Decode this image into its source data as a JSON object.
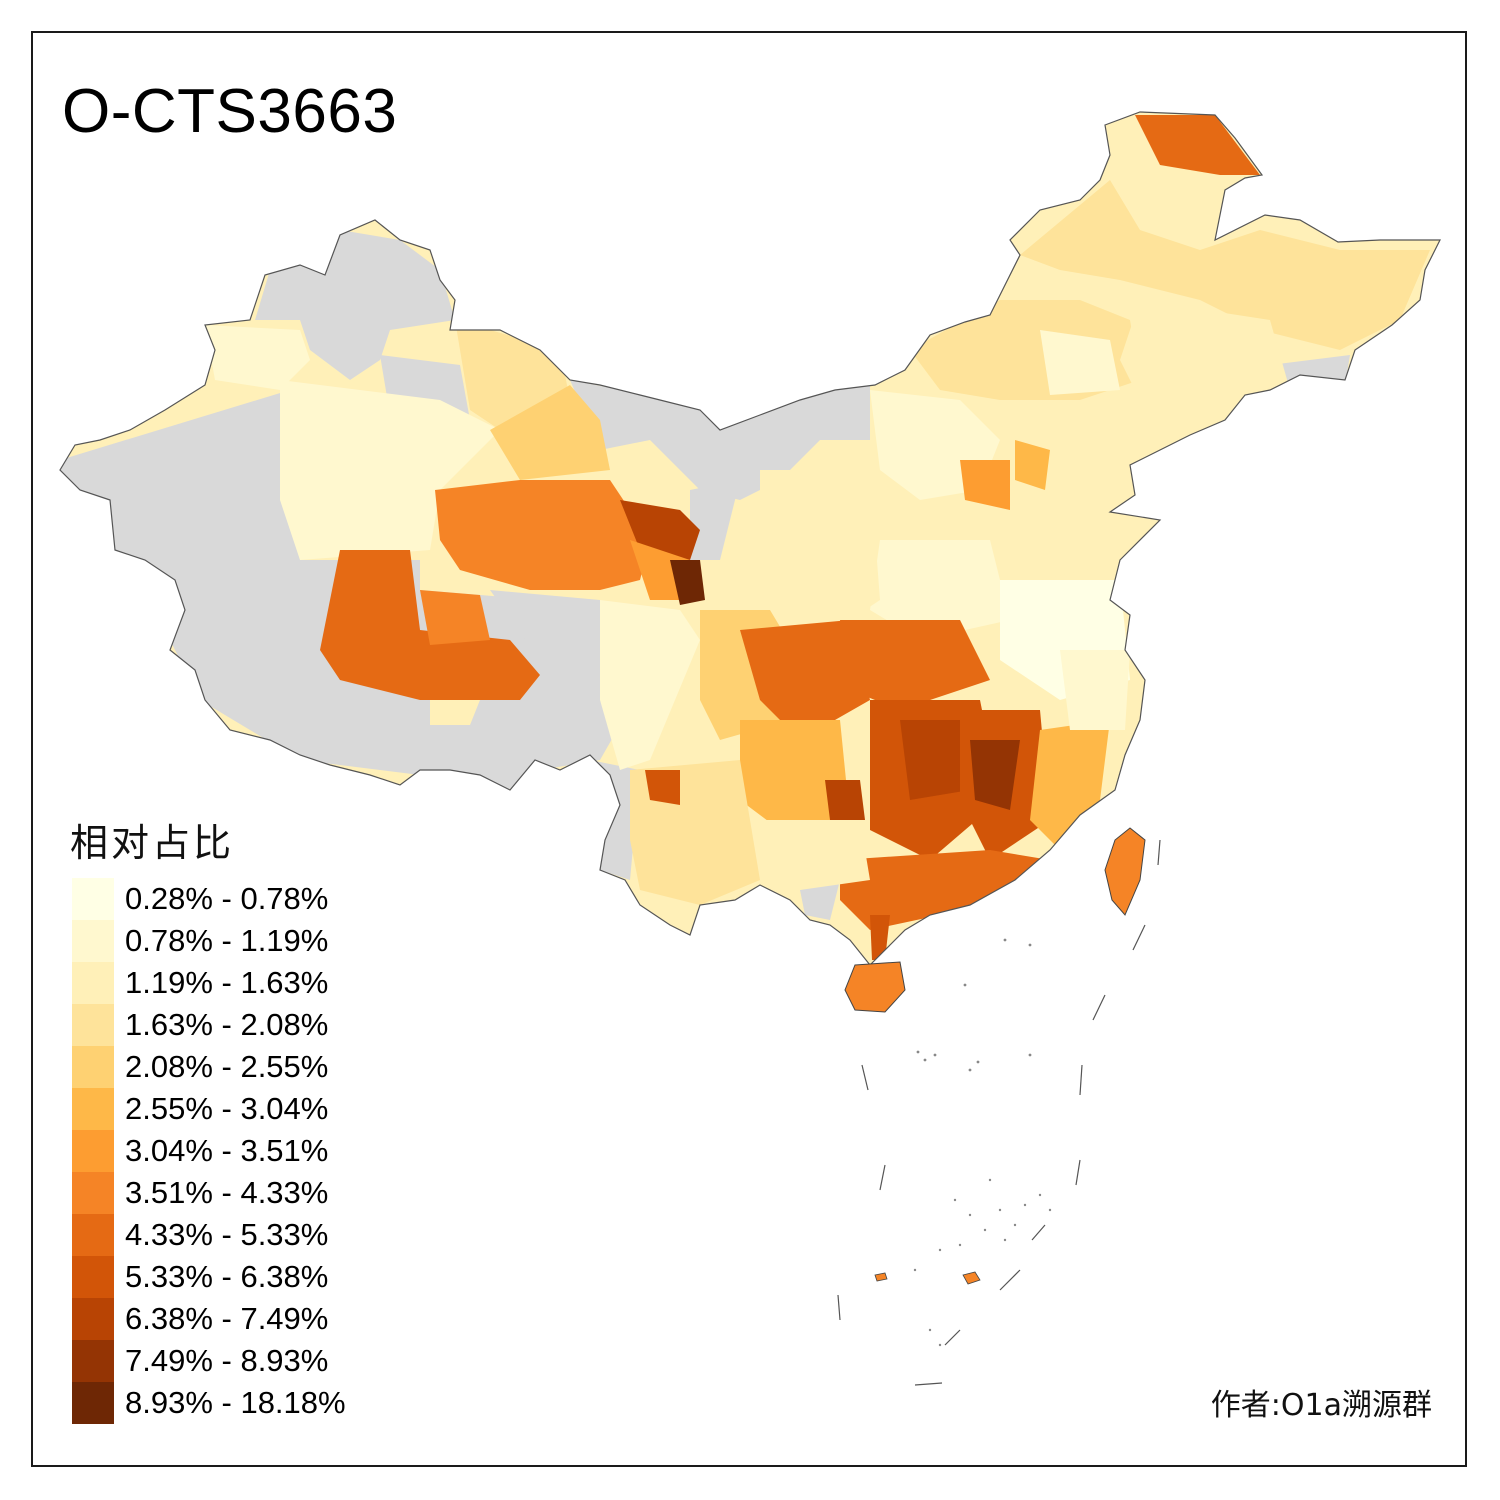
{
  "title": "O-CTS3663",
  "legend": {
    "title": "相对占比",
    "classes": [
      {
        "label": "0.28% - 0.78%",
        "color": "#ffffe5"
      },
      {
        "label": "0.78% - 1.19%",
        "color": "#fff8cf"
      },
      {
        "label": "1.19% - 1.63%",
        "color": "#fff0b8"
      },
      {
        "label": "1.63% - 2.08%",
        "color": "#fee39a"
      },
      {
        "label": "2.08% - 2.55%",
        "color": "#fed172"
      },
      {
        "label": "2.55% - 3.04%",
        "color": "#feb848"
      },
      {
        "label": "3.04% - 3.51%",
        "color": "#fd9d31"
      },
      {
        "label": "3.51% - 4.33%",
        "color": "#f58426"
      },
      {
        "label": "4.33% - 5.33%",
        "color": "#e56a14"
      },
      {
        "label": "5.33% - 6.38%",
        "color": "#d25508"
      },
      {
        "label": "6.38% - 7.49%",
        "color": "#b84404"
      },
      {
        "label": "7.49% - 8.93%",
        "color": "#943404"
      },
      {
        "label": "8.93% - 18.18%",
        "color": "#6e2705"
      }
    ]
  },
  "no_data_color": "#d9d9d9",
  "credit": "作者:O1a溯源群"
}
